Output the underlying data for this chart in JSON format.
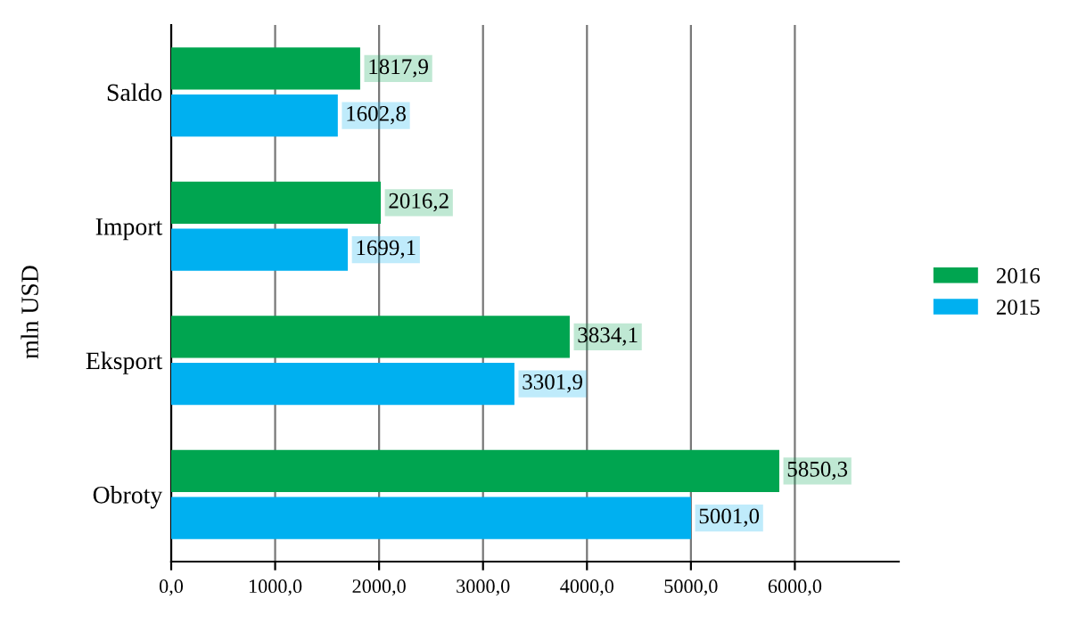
{
  "chart_data": {
    "type": "bar",
    "orientation": "horizontal",
    "ylabel": "mln USD",
    "categories": [
      "Saldo",
      "Import",
      "Eksport",
      "Obroty"
    ],
    "series": [
      {
        "name": "2016",
        "color": "#00a550",
        "values": [
          1817.9,
          2016.2,
          3834.1,
          5850.3
        ],
        "value_labels": [
          "1817,9",
          "2016,2",
          "3834,1",
          "5850,3"
        ]
      },
      {
        "name": "2015",
        "color": "#00b0f0",
        "values": [
          1602.8,
          1699.1,
          3301.9,
          5001.0
        ],
        "value_labels": [
          "1602,8",
          "1699,1",
          "3301,9",
          "5001,0"
        ]
      }
    ],
    "xlim": [
      0,
      7000
    ],
    "xticks": [
      {
        "value": 0,
        "label": "0,0"
      },
      {
        "value": 1000,
        "label": "1000,0"
      },
      {
        "value": 2000,
        "label": "2000,0"
      },
      {
        "value": 3000,
        "label": "3000,0"
      },
      {
        "value": 4000,
        "label": "4000,0"
      },
      {
        "value": 5000,
        "label": "5000,0"
      },
      {
        "value": 6000,
        "label": "6000,0"
      }
    ],
    "grid": "x",
    "legend": "right"
  }
}
